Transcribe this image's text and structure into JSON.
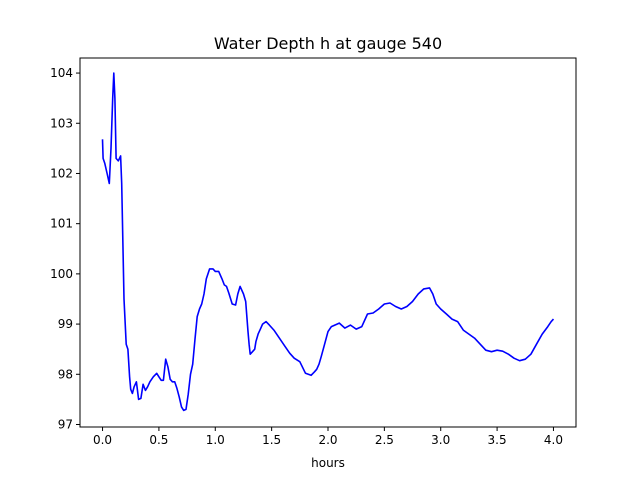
{
  "chart_data": {
    "type": "line",
    "title": "Water Depth h at gauge 540",
    "xlabel": "hours",
    "ylabel": "",
    "xlim": [
      -0.2,
      4.2
    ],
    "ylim": [
      96.95,
      104.3
    ],
    "xticks": [
      0.0,
      0.5,
      1.0,
      1.5,
      2.0,
      2.5,
      3.0,
      3.5,
      4.0
    ],
    "xtick_labels": [
      "0.0",
      "0.5",
      "1.0",
      "1.5",
      "2.0",
      "2.5",
      "3.0",
      "3.5",
      "4.0"
    ],
    "yticks": [
      97,
      98,
      99,
      100,
      101,
      102,
      103,
      104
    ],
    "ytick_labels": [
      "97",
      "98",
      "99",
      "100",
      "101",
      "102",
      "103",
      "104"
    ],
    "grid": false,
    "legend": "none",
    "series": [
      {
        "color": "#0000ff",
        "x": [
          0.0,
          0.005,
          0.02,
          0.04,
          0.06,
          0.075,
          0.09,
          0.1,
          0.11,
          0.12,
          0.14,
          0.16,
          0.17,
          0.19,
          0.21,
          0.225,
          0.24,
          0.25,
          0.265,
          0.28,
          0.3,
          0.32,
          0.34,
          0.36,
          0.38,
          0.4,
          0.42,
          0.45,
          0.48,
          0.5,
          0.52,
          0.54,
          0.56,
          0.58,
          0.6,
          0.62,
          0.64,
          0.66,
          0.68,
          0.7,
          0.72,
          0.74,
          0.76,
          0.78,
          0.8,
          0.82,
          0.84,
          0.86,
          0.88,
          0.9,
          0.92,
          0.95,
          0.98,
          1.0,
          1.03,
          1.06,
          1.08,
          1.1,
          1.12,
          1.15,
          1.18,
          1.2,
          1.22,
          1.25,
          1.27,
          1.29,
          1.3,
          1.31,
          1.33,
          1.35,
          1.36,
          1.38,
          1.4,
          1.42,
          1.45,
          1.48,
          1.52,
          1.55,
          1.58,
          1.62,
          1.66,
          1.7,
          1.75,
          1.8,
          1.85,
          1.88,
          1.9,
          1.92,
          1.94,
          1.97,
          2.0,
          2.03,
          2.06,
          2.1,
          2.15,
          2.2,
          2.25,
          2.3,
          2.35,
          2.4,
          2.45,
          2.5,
          2.55,
          2.6,
          2.65,
          2.7,
          2.75,
          2.8,
          2.85,
          2.9,
          2.93,
          2.96,
          3.0,
          3.05,
          3.1,
          3.15,
          3.2,
          3.25,
          3.3,
          3.35,
          3.4,
          3.45,
          3.5,
          3.55,
          3.6,
          3.65,
          3.7,
          3.75,
          3.8,
          3.85,
          3.9,
          3.95,
          3.98,
          4.0
        ],
        "y": [
          102.68,
          102.3,
          102.2,
          102.0,
          101.8,
          102.5,
          103.5,
          104.0,
          103.5,
          102.3,
          102.25,
          102.35,
          101.8,
          99.5,
          98.6,
          98.5,
          97.95,
          97.7,
          97.62,
          97.75,
          97.85,
          97.5,
          97.52,
          97.8,
          97.68,
          97.75,
          97.85,
          97.95,
          98.02,
          97.95,
          97.88,
          97.88,
          98.3,
          98.15,
          97.9,
          97.85,
          97.85,
          97.72,
          97.55,
          97.35,
          97.28,
          97.3,
          97.6,
          98.0,
          98.2,
          98.7,
          99.15,
          99.3,
          99.4,
          99.6,
          99.9,
          100.1,
          100.1,
          100.05,
          100.05,
          99.9,
          99.78,
          99.75,
          99.62,
          99.4,
          99.38,
          99.6,
          99.75,
          99.6,
          99.45,
          98.85,
          98.6,
          98.4,
          98.45,
          98.5,
          98.65,
          98.8,
          98.9,
          99.0,
          99.05,
          98.98,
          98.88,
          98.78,
          98.68,
          98.55,
          98.42,
          98.32,
          98.25,
          98.02,
          97.98,
          98.05,
          98.1,
          98.2,
          98.35,
          98.6,
          98.85,
          98.95,
          98.98,
          99.02,
          98.92,
          98.98,
          98.9,
          98.95,
          99.2,
          99.22,
          99.3,
          99.4,
          99.42,
          99.35,
          99.3,
          99.35,
          99.45,
          99.6,
          99.7,
          99.72,
          99.6,
          99.4,
          99.3,
          99.2,
          99.1,
          99.05,
          98.88,
          98.8,
          98.72,
          98.6,
          98.48,
          98.45,
          98.48,
          98.46,
          98.4,
          98.32,
          98.27,
          98.3,
          98.4,
          98.6,
          98.8,
          98.95,
          99.05,
          99.1
        ]
      }
    ]
  }
}
